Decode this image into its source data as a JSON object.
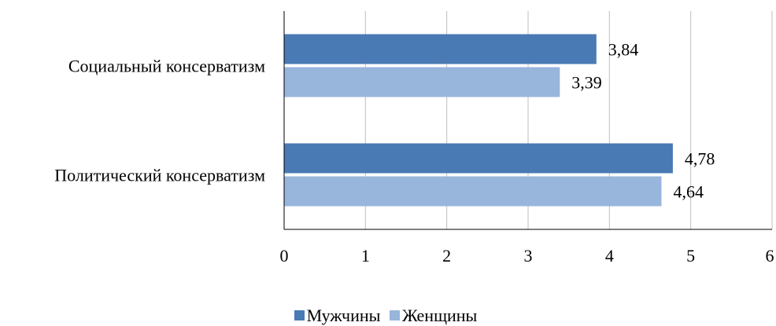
{
  "chart_data": {
    "type": "bar",
    "orientation": "horizontal",
    "categories": [
      "Социальный консерватизм",
      "Политический консерватизм"
    ],
    "series": [
      {
        "name": "Мужчины",
        "values": [
          3.84,
          4.78
        ],
        "labels": [
          "3,84",
          "4,78"
        ],
        "color": "#4a7ab4"
      },
      {
        "name": "Женщины",
        "values": [
          3.39,
          4.64
        ],
        "labels": [
          "3,39",
          "4,64"
        ],
        "color": "#98b5db"
      }
    ],
    "title": "",
    "xlabel": "",
    "ylabel": "",
    "xlim": [
      0,
      6
    ],
    "ticks": [
      0,
      1,
      2,
      3,
      4,
      5,
      6
    ],
    "tick_labels": [
      "0",
      "1",
      "2",
      "3",
      "4",
      "5",
      "6"
    ],
    "grid": "vertical",
    "legend_position": "bottom",
    "gridline_color": "#bfbfbf",
    "axis_color": "#000000"
  }
}
